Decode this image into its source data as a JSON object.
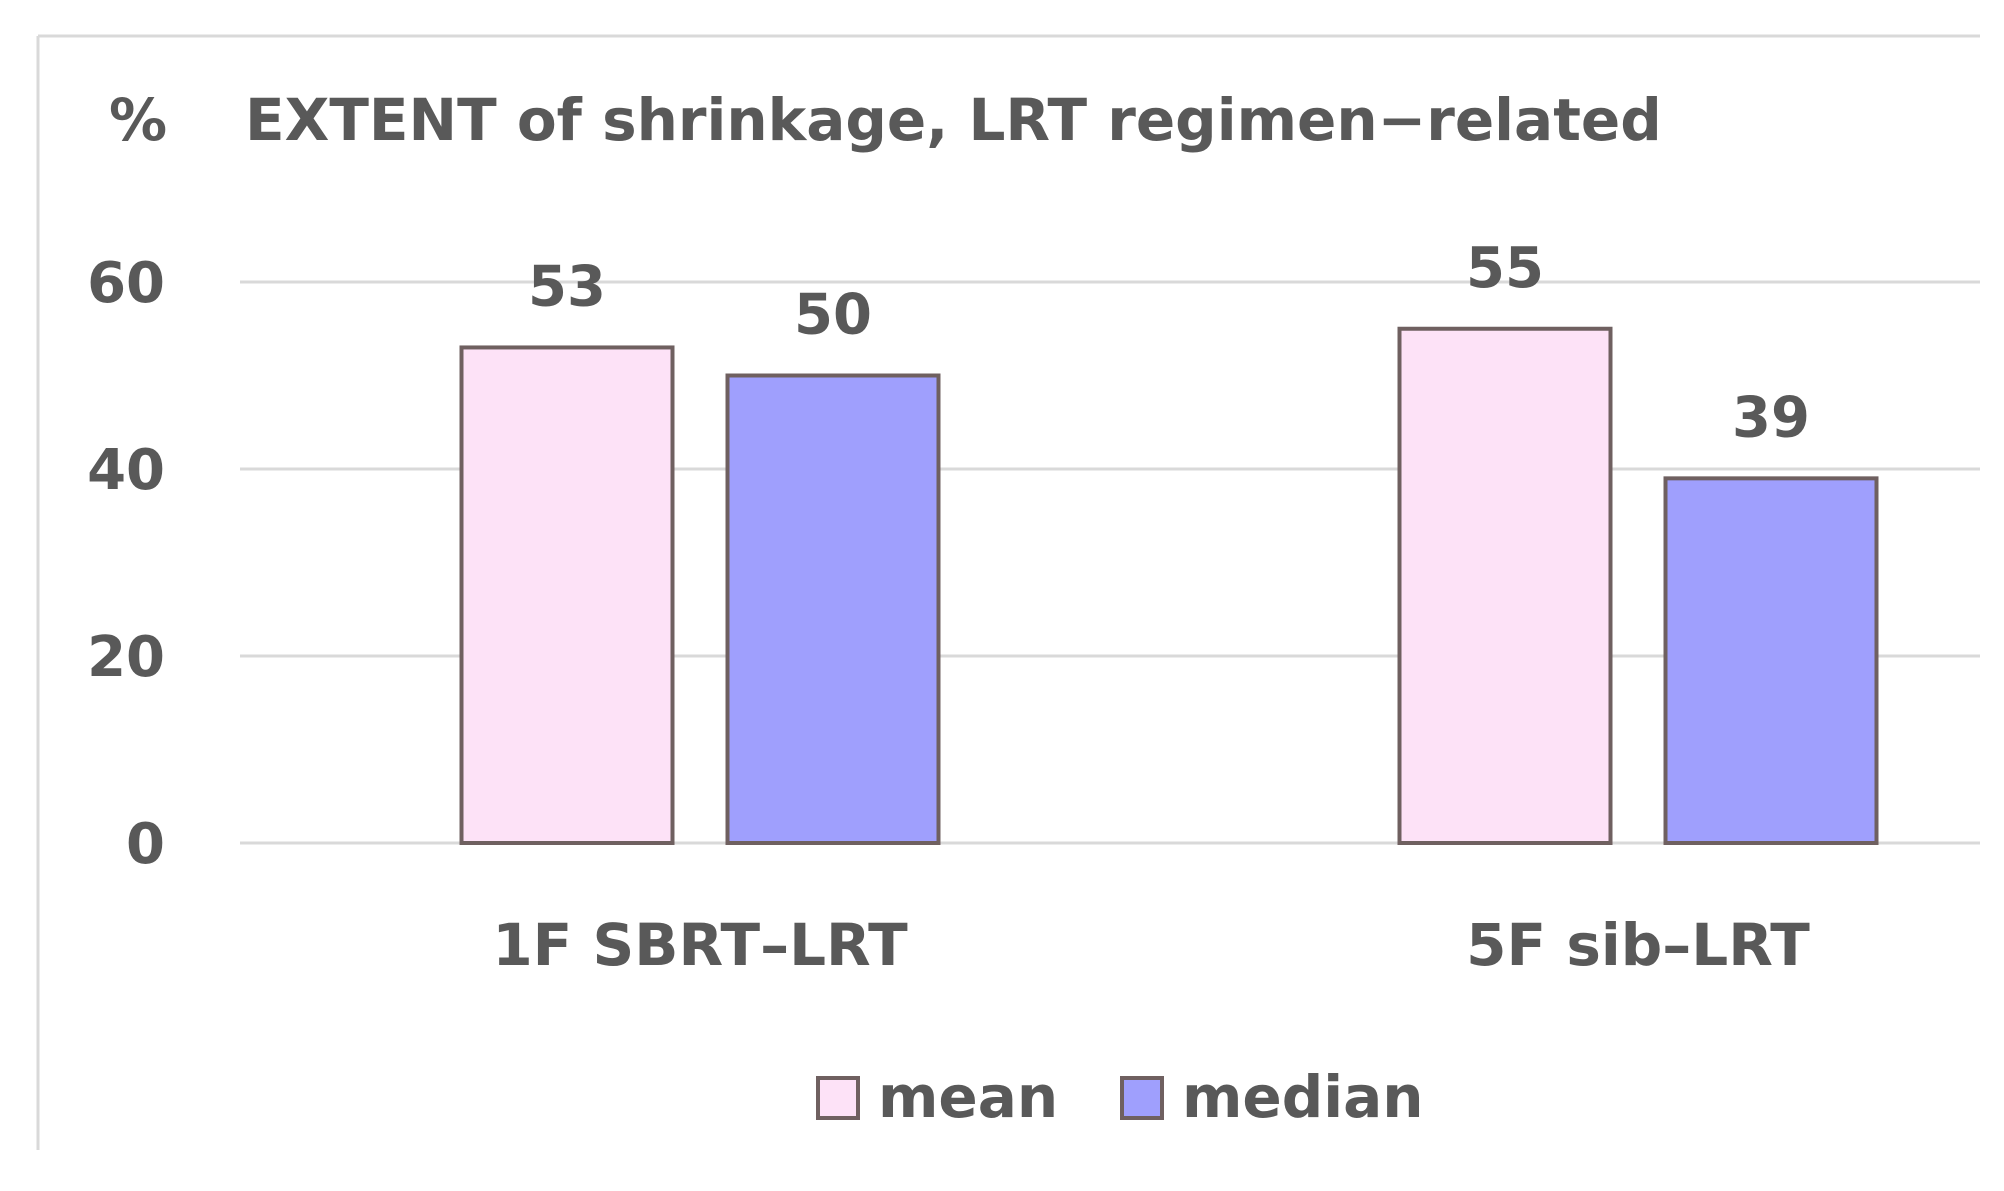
{
  "chart_data": {
    "type": "bar",
    "title": "EXTENT of shrinkage, LRT regimen−related",
    "ylabel": "%",
    "xlabel": "",
    "categories": [
      "1F SBRT–LRT",
      "5F sib–LRT"
    ],
    "series": [
      {
        "name": "mean",
        "values": [
          53,
          55
        ],
        "color": "#fde2f7"
      },
      {
        "name": "median",
        "values": [
          50,
          39
        ],
        "color": "#9f9ffd"
      }
    ],
    "ylim": [
      0,
      60
    ],
    "yticks": [
      "0",
      "20",
      "40",
      "60"
    ],
    "grid": true,
    "legend_position": "bottom",
    "colors": {
      "text": "#595959",
      "grid": "#d9d9d9",
      "bar_border": "#6f6060",
      "frame": "#d9d9d9"
    }
  }
}
